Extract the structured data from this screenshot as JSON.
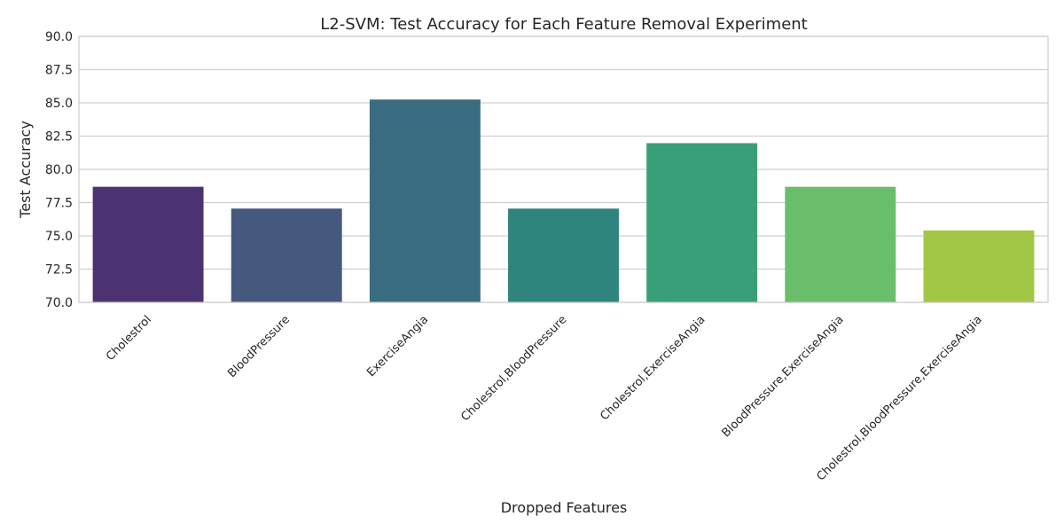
{
  "chart_data": {
    "type": "bar",
    "title": "L2-SVM: Test Accuracy for Each Feature Removal Experiment",
    "xlabel": "Dropped Features",
    "ylabel": "Test Accuracy",
    "ylim": [
      70,
      90
    ],
    "yticks": [
      "70.0",
      "72.5",
      "75.0",
      "77.5",
      "80.0",
      "82.5",
      "85.0",
      "87.5",
      "90.0"
    ],
    "categories": [
      "Cholestrol",
      "BloodPressure",
      "ExerciseAngia",
      "Cholestrol,BloodPressure",
      "Cholestrol,ExerciseAngia",
      "BloodPressure,ExerciseAngia",
      "Cholestrol,BloodPressure,ExerciseAngia"
    ],
    "values": [
      78.69,
      77.05,
      85.25,
      77.05,
      81.97,
      78.69,
      75.41
    ],
    "colors": [
      "#4a3370",
      "#45597f",
      "#396c80",
      "#30847e",
      "#399f78",
      "#6abd6b",
      "#a2c746"
    ],
    "grid": true,
    "legend": "none"
  }
}
